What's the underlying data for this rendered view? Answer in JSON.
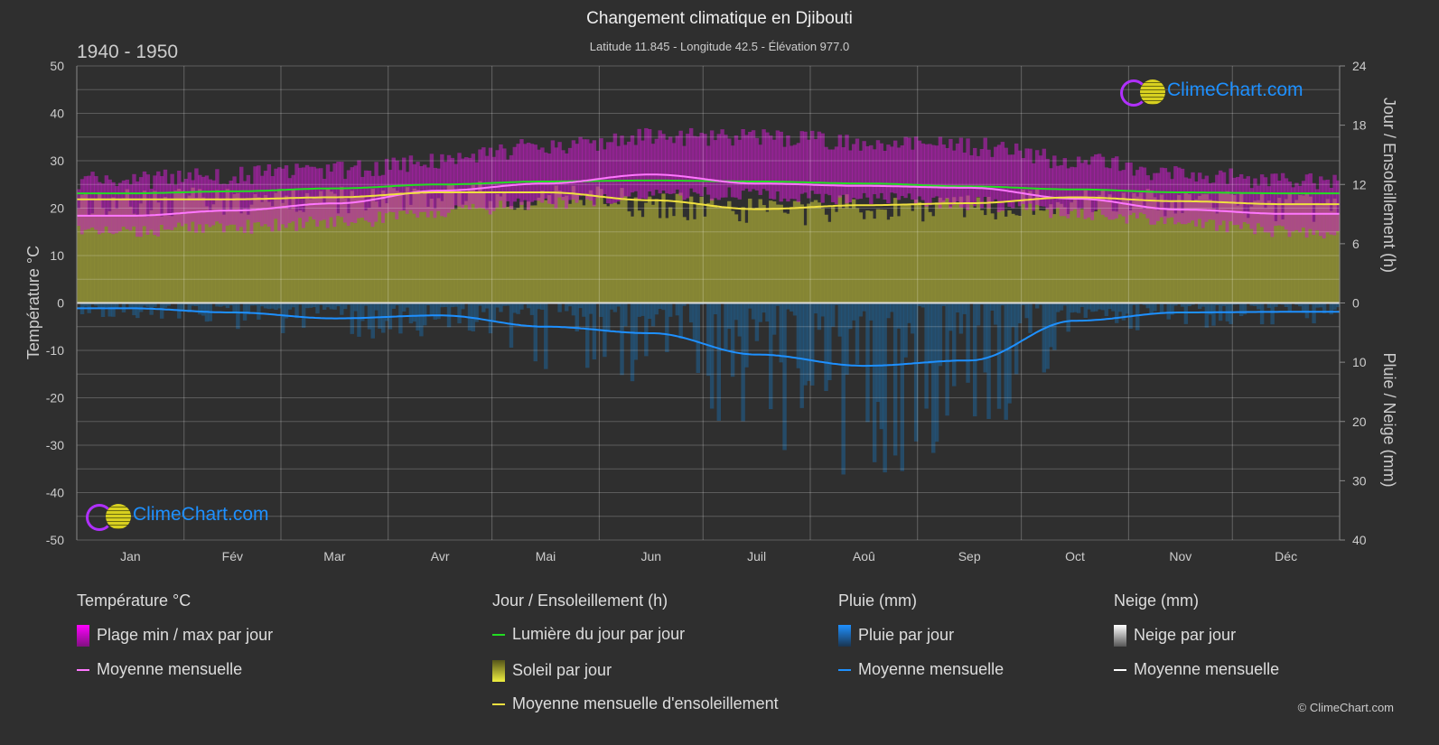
{
  "header": {
    "title": "Changement climatique en Djibouti",
    "subtitle": "Latitude 11.845 - Longitude 42.5 - Élévation 977.0",
    "period": "1940 - 1950"
  },
  "brand": {
    "name": "ClimeChart.com",
    "copyright": "© ClimeChart.com"
  },
  "colors": {
    "background": "#2f2f2f",
    "temp_range": "#c81ec8",
    "temp_mean": "#ff77ff",
    "daylight": "#22dd22",
    "sunshine_fill": "#8a8a35",
    "sunshine_mean": "#f0e040",
    "rain_fill": "#1f5f8f",
    "rain_mean": "#1e90ff",
    "snow_mean": "#ffffff"
  },
  "legend": {
    "temperature": {
      "title": "Température °C",
      "items": [
        "Plage min / max par jour",
        "Moyenne mensuelle"
      ]
    },
    "sun": {
      "title": "Jour / Ensoleillement (h)",
      "items": [
        "Lumière du jour par jour",
        "Soleil par jour",
        "Moyenne mensuelle d'ensoleillement"
      ]
    },
    "rain": {
      "title": "Pluie (mm)",
      "items": [
        "Pluie par jour",
        "Moyenne mensuelle"
      ]
    },
    "snow": {
      "title": "Neige (mm)",
      "items": [
        "Neige par jour",
        "Moyenne mensuelle"
      ]
    }
  },
  "chart_data": {
    "type": "area",
    "title": "Changement climatique en Djibouti",
    "categories": [
      "Jan",
      "Fév",
      "Mar",
      "Avr",
      "Mai",
      "Jun",
      "Juil",
      "Aoû",
      "Sep",
      "Oct",
      "Nov",
      "Déc"
    ],
    "y_left": {
      "label": "Température °C",
      "lim": [
        -50,
        50
      ],
      "ticks": [
        50,
        40,
        30,
        20,
        10,
        0,
        -10,
        -20,
        -30,
        -40,
        -50
      ]
    },
    "y_right_top": {
      "label": "Jour / Ensoleillement (h)",
      "lim": [
        0,
        24
      ],
      "ticks": [
        24,
        18,
        12,
        6,
        0
      ]
    },
    "y_right_bottom": {
      "label": "Pluie / Neige (mm)",
      "lim": [
        0,
        40
      ],
      "ticks": [
        0,
        10,
        20,
        30,
        40
      ]
    },
    "grid": true,
    "series": [
      {
        "name": "Moyenne mensuelle",
        "group": "temperature",
        "values": [
          18.4,
          19.5,
          21.0,
          23.7,
          25.2,
          27.1,
          25.2,
          24.7,
          24.3,
          22.0,
          19.7,
          18.8
        ]
      },
      {
        "name": "Plage min / max par jour",
        "group": "temperature",
        "max": [
          26,
          27,
          28,
          30,
          33,
          35,
          35,
          34,
          33,
          30,
          27,
          26
        ],
        "min": [
          15,
          16,
          17,
          19,
          21,
          23,
          23,
          22,
          21,
          19,
          17,
          15
        ]
      },
      {
        "name": "Lumière du jour par jour",
        "group": "sun",
        "values": [
          11.1,
          11.3,
          11.6,
          12.0,
          12.3,
          12.4,
          12.3,
          12.1,
          11.8,
          11.5,
          11.2,
          11.1
        ]
      },
      {
        "name": "Moyenne mensuelle d'ensoleillement",
        "group": "sun",
        "values": [
          10.5,
          10.5,
          10.7,
          11.2,
          11.2,
          10.4,
          9.5,
          9.9,
          10.1,
          10.7,
          10.3,
          10.0
        ]
      },
      {
        "name": "Moyenne mensuelle",
        "group": "rain",
        "values": [
          0.9,
          1.6,
          2.6,
          2.1,
          4.0,
          5.1,
          8.7,
          10.6,
          9.7,
          3.0,
          1.6,
          1.5
        ]
      },
      {
        "name": "Moyenne mensuelle",
        "group": "snow",
        "values": [
          0,
          0,
          0,
          0,
          0,
          0,
          0,
          0,
          0,
          0,
          0,
          0
        ]
      }
    ]
  }
}
